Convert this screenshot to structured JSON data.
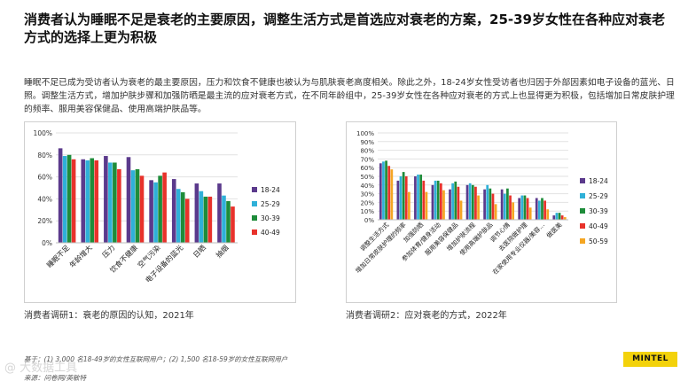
{
  "title": "消费者认为睡眠不足是衰老的主要原因，调整生活方式是首选应对衰老的方案，25-39岁女性在各种应对衰老方式的选择上更为积极",
  "body": "睡眠不足已成为受访者认为衰老的最主要原因，压力和饮食不健康也被认为与肌肤衰老高度相关。除此之外，18-24岁女性受访者也归因于外部因素如电子设备的蓝光、日照。调整生活方式，增加护肤步骤和加强防晒是最主流的应对衰老方式，在不同年龄组中，25-39岁女性在各种应对衰老的方式上也显得更为积极，包括增加日常皮肤护理的频率、服用美容保健品、使用高端护肤品等。",
  "colors": {
    "18-24": "#5b3a8c",
    "25-29": "#2fb0d8",
    "30-39": "#1e8c3a",
    "40-49": "#e8322b",
    "50-59": "#f5a623"
  },
  "chart_data": [
    {
      "type": "bar",
      "categories": [
        "睡眠不足",
        "年龄增大",
        "压力",
        "饮食不健康",
        "空气污染",
        "电子设备的蓝光",
        "日晒",
        "抽烟"
      ],
      "ylim": [
        0,
        100
      ],
      "yticks": [
        "0%",
        "20%",
        "40%",
        "60%",
        "80%",
        "100%"
      ],
      "series": [
        {
          "name": "18-24",
          "values": [
            86,
            76,
            79,
            78,
            57,
            58,
            54,
            54
          ]
        },
        {
          "name": "25-29",
          "values": [
            79,
            75,
            73,
            66,
            55,
            49,
            47,
            43
          ]
        },
        {
          "name": "30-39",
          "values": [
            80,
            77,
            73,
            67,
            61,
            46,
            42,
            38
          ]
        },
        {
          "name": "40-49",
          "values": [
            76,
            75,
            67,
            61,
            64,
            40,
            42,
            33
          ]
        }
      ],
      "grid": true,
      "legend": "right"
    },
    {
      "type": "bar",
      "categories": [
        "调整生活方式",
        "增加日常皮肤护理的频率",
        "加强防晒",
        "参加体育/健身活动",
        "服用美容保健品",
        "增加护肤流程",
        "使用高端护肤品",
        "调节心情",
        "去医院做护理",
        "在家使用专业仪器/美容…",
        "做医美"
      ],
      "ylim": [
        0,
        100
      ],
      "yticks": [
        "0%",
        "10%",
        "20%",
        "30%",
        "40%",
        "50%",
        "60%",
        "70%",
        "80%",
        "90%",
        "100%"
      ],
      "series": [
        {
          "name": "18-24",
          "values": [
            65,
            45,
            50,
            40,
            35,
            40,
            35,
            35,
            25,
            25,
            5
          ]
        },
        {
          "name": "25-29",
          "values": [
            67,
            50,
            52,
            45,
            42,
            42,
            40,
            30,
            28,
            22,
            8
          ]
        },
        {
          "name": "30-39",
          "values": [
            68,
            55,
            52,
            45,
            44,
            40,
            36,
            36,
            28,
            25,
            8
          ]
        },
        {
          "name": "40-49",
          "values": [
            62,
            50,
            45,
            42,
            38,
            38,
            30,
            28,
            25,
            22,
            5
          ]
        },
        {
          "name": "50-59",
          "values": [
            58,
            32,
            32,
            34,
            22,
            28,
            18,
            20,
            14,
            12,
            3
          ]
        }
      ],
      "grid": true,
      "legend": "right"
    }
  ],
  "captions": {
    "chart1": "消费者调研1：衰老的原因的认知，2021年",
    "chart2": "消费者调研2：应对衰老的方式，2022年"
  },
  "footnote": "基于：(1) 3,000 名18-49岁的女性互联网用户；(2) 1,500 名18-59岁的女性互联网用户",
  "source": "来源：问卷网/英敏特",
  "watermark": "@ 大数据工具",
  "logo": "MINTEL"
}
